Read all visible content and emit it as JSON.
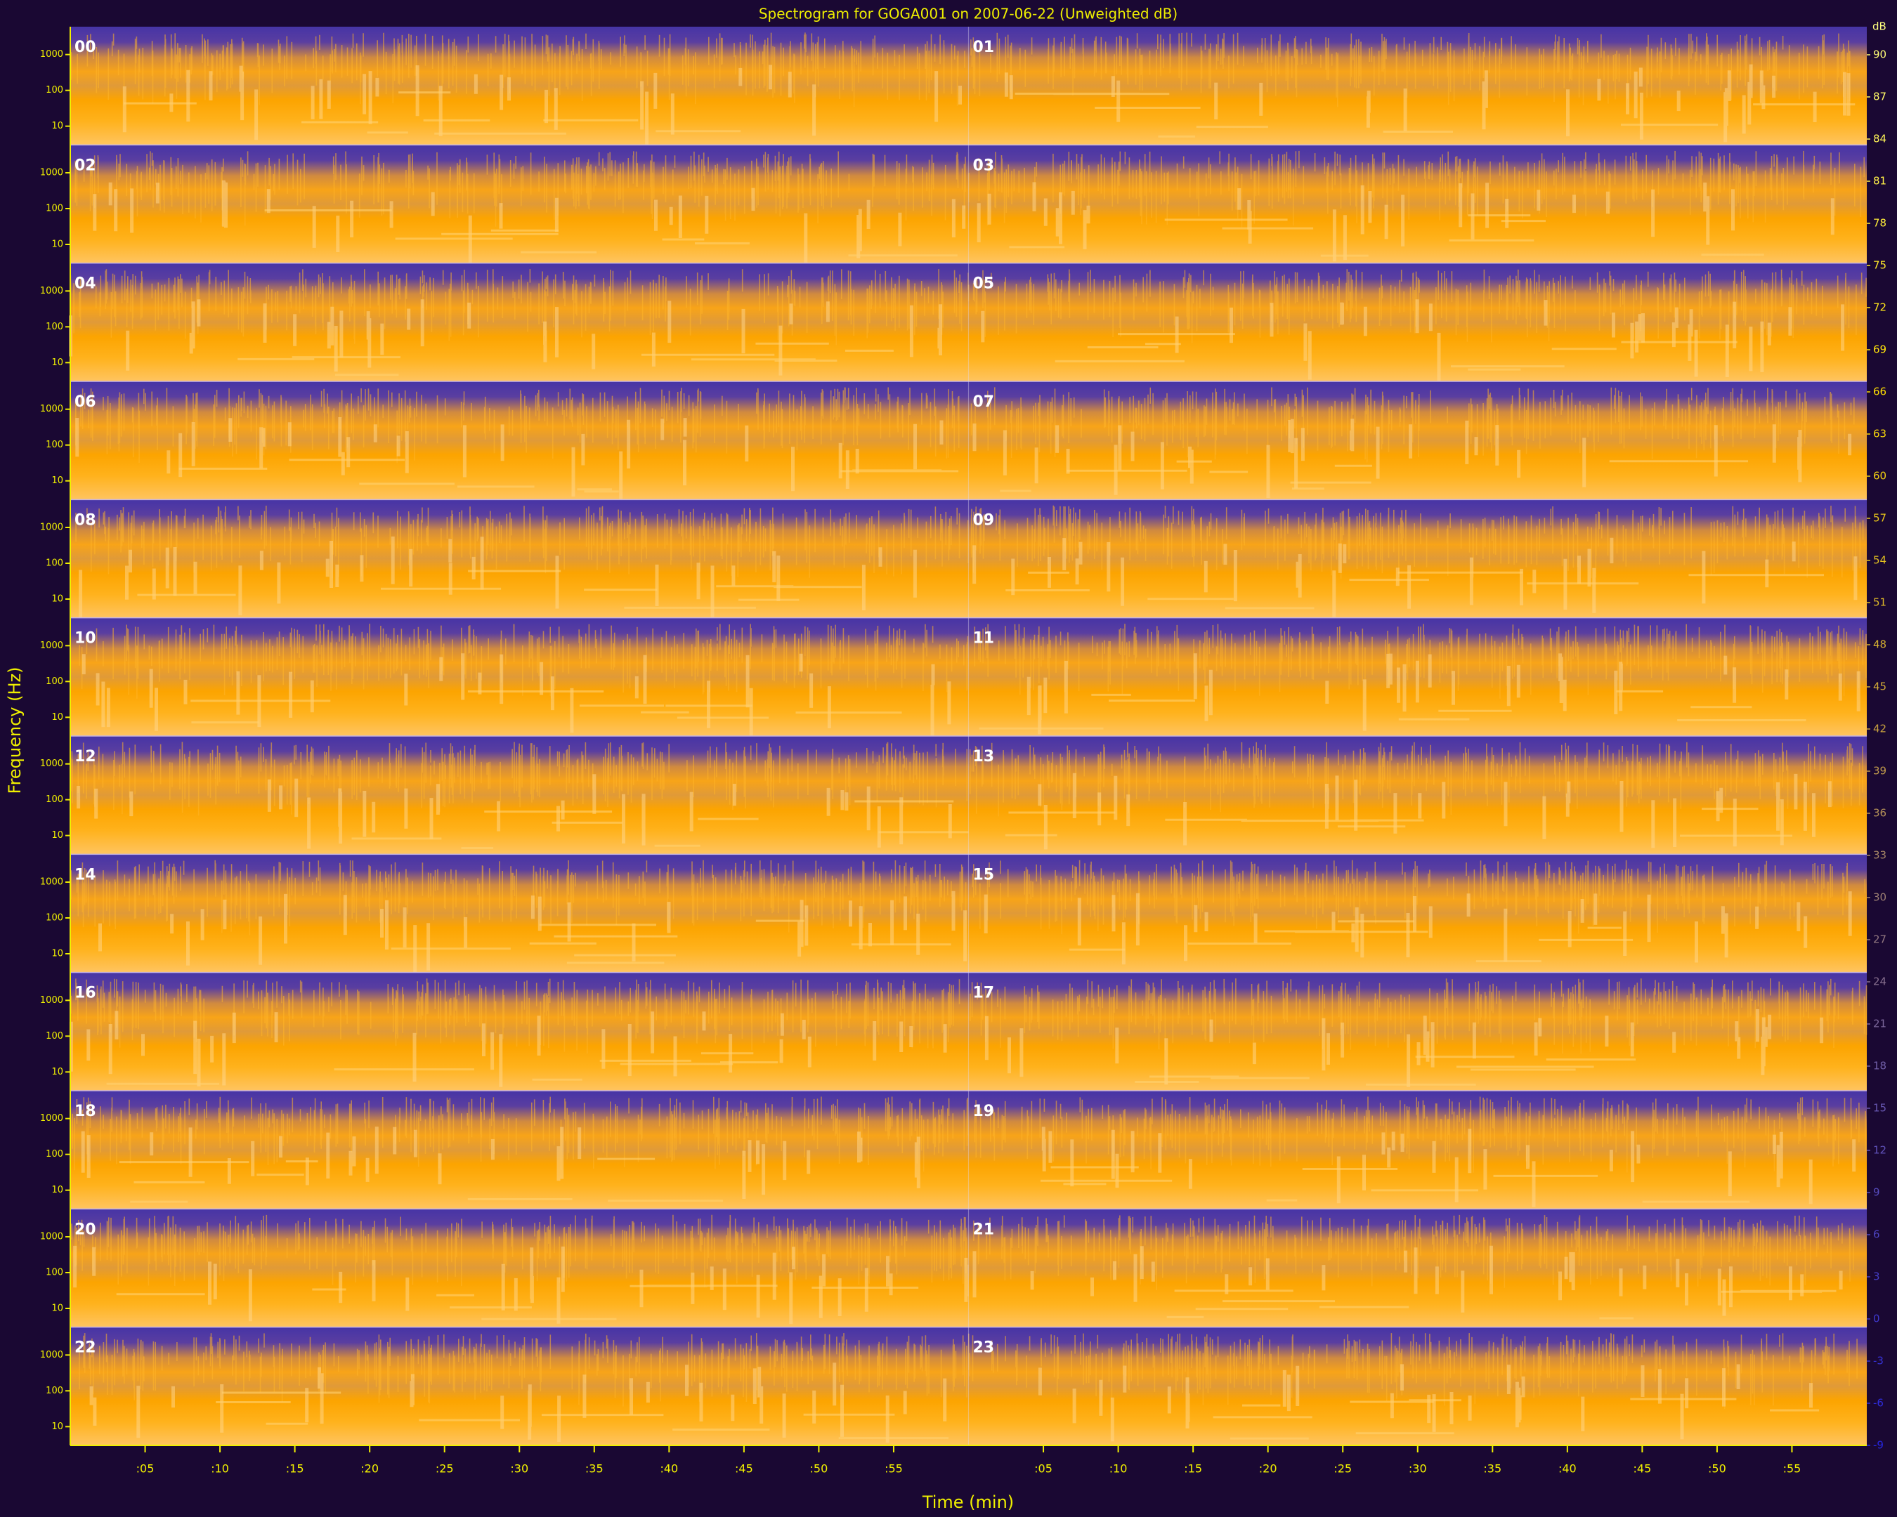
{
  "chart_data": {
    "type": "spectrogram",
    "title": "Spectrogram for GOGA001 on 2007-06-22 (Unweighted dB)",
    "x_label": "Time (min)",
    "y_label": "Frequency (Hz)",
    "xlim": [
      0,
      60
    ],
    "xticks": [
      {
        "value": 5,
        "label": ":05"
      },
      {
        "value": 10,
        "label": ":10"
      },
      {
        "value": 15,
        "label": ":15"
      },
      {
        "value": 20,
        "label": ":20"
      },
      {
        "value": 25,
        "label": ":25"
      },
      {
        "value": 30,
        "label": ":30"
      },
      {
        "value": 35,
        "label": ":35"
      },
      {
        "value": 40,
        "label": ":40"
      },
      {
        "value": 45,
        "label": ":45"
      },
      {
        "value": 50,
        "label": ":50"
      },
      {
        "value": 55,
        "label": ":55"
      }
    ],
    "ylim": [
      3,
      6000
    ],
    "yscale": "log",
    "yticks": [
      10,
      100,
      1000
    ],
    "panel_columns": 2,
    "panels": [
      "00",
      "01",
      "02",
      "03",
      "04",
      "05",
      "06",
      "07",
      "08",
      "09",
      "10",
      "11",
      "12",
      "13",
      "14",
      "15",
      "16",
      "17",
      "18",
      "19",
      "20",
      "21",
      "22",
      "23"
    ],
    "colorbar": {
      "label": "dB",
      "lim": [
        -9,
        92
      ],
      "ticks": [
        90,
        87,
        84,
        81,
        78,
        75,
        72,
        69,
        66,
        63,
        60,
        57,
        54,
        51,
        48,
        45,
        42,
        39,
        36,
        33,
        30,
        27,
        24,
        21,
        18,
        15,
        12,
        9,
        6,
        3,
        0,
        -3,
        -6,
        -9
      ],
      "colormap": [
        "#2626e0",
        "#6a5ab0",
        "#c8a040",
        "#ffe000",
        "#ffff80"
      ]
    }
  }
}
